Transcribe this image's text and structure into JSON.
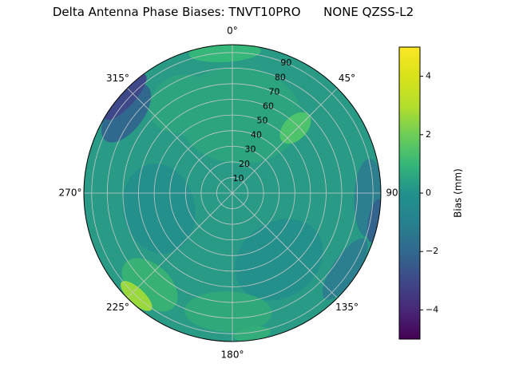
{
  "title": "Delta Antenna Phase Biases: TNVT10PRO      NONE QZSS-L2",
  "chart_data": {
    "type": "polar_contour",
    "title": "Delta Antenna Phase Biases: TNVT10PRO      NONE QZSS-L2",
    "antenna": "TNVT10PRO",
    "dome": "NONE",
    "signal": "QZSS-L2",
    "bias_units": "mm",
    "angular": {
      "ticks_deg": [
        0,
        45,
        90,
        135,
        180,
        225,
        270,
        315
      ],
      "labels": [
        "0°",
        "45°",
        "90°",
        "135°",
        "180°",
        "225°",
        "270°",
        "315°"
      ],
      "direction": "clockwise",
      "zero": "top"
    },
    "radial": {
      "ticks": [
        10,
        20,
        30,
        40,
        50,
        60,
        70,
        80,
        90
      ],
      "labels": [
        "10",
        "20",
        "30",
        "40",
        "50",
        "60",
        "70",
        "80",
        "90"
      ],
      "max": 95,
      "label_angle_deg": 22.5
    },
    "grid_color": "#c8c8c8",
    "outline_color": "#000000",
    "field": {
      "base_bias_mm": 0.5,
      "base_color": "#289a86",
      "regions": [
        {
          "name": "top-green-broad",
          "angle_deg": 5,
          "r": 50,
          "width_r": 80,
          "depth_r": 62,
          "bias_mm": 0.8,
          "color": "#2ba47f"
        },
        {
          "name": "upper-left-green",
          "angle_deg": 330,
          "r": 66,
          "width_r": 42,
          "depth_r": 36,
          "bias_mm": 0.8,
          "color": "#2ba47f"
        },
        {
          "name": "lower-right-dark-teal",
          "angle_deg": 145,
          "r": 52,
          "width_r": 60,
          "depth_r": 48,
          "bias_mm": -0.4,
          "color": "#23908b"
        },
        {
          "name": "left-dark-teal",
          "angle_deg": 258,
          "r": 48,
          "width_r": 58,
          "depth_r": 46,
          "bias_mm": -0.4,
          "color": "#23908b"
        },
        {
          "name": "bottom-green",
          "angle_deg": 182,
          "r": 76,
          "width_r": 56,
          "depth_r": 26,
          "bias_mm": 1.0,
          "color": "#2fa87a"
        },
        {
          "name": "right-edge-teal-blue-upper",
          "angle_deg": 92,
          "r": 87,
          "width_r": 50,
          "depth_r": 18,
          "bias_mm": -1.0,
          "color": "#2b7f8e"
        },
        {
          "name": "right-edge-teal-blue-lower",
          "angle_deg": 124,
          "r": 87,
          "width_r": 46,
          "depth_r": 16,
          "bias_mm": -1.0,
          "color": "#2b7f8e"
        },
        {
          "name": "right-edge-blue",
          "angle_deg": 101,
          "r": 93,
          "width_r": 28,
          "depth_r": 9,
          "bias_mm": -1.8,
          "color": "#33648e"
        },
        {
          "name": "nw-edge-blue",
          "angle_deg": 307,
          "r": 85,
          "width_r": 44,
          "depth_r": 22,
          "bias_mm": -1.8,
          "color": "#31688e"
        },
        {
          "name": "nw-edge-navy",
          "angle_deg": 312,
          "r": 92,
          "width_r": 38,
          "depth_r": 12,
          "bias_mm": -3.0,
          "color": "#3e4989"
        },
        {
          "name": "top-edge-green-arc",
          "angle_deg": 357,
          "r": 90,
          "width_r": 46,
          "depth_r": 12,
          "bias_mm": 1.8,
          "color": "#35b779"
        },
        {
          "name": "ne-green-blob",
          "angle_deg": 44,
          "r": 58,
          "width_r": 15,
          "depth_r": 24,
          "bias_mm": 2.2,
          "color": "#4dc36c"
        },
        {
          "name": "sw-green-patch",
          "angle_deg": 222,
          "r": 79,
          "width_r": 42,
          "depth_r": 26,
          "bias_mm": 1.8,
          "color": "#38b274"
        },
        {
          "name": "sw-edge-yellow-green",
          "angle_deg": 223,
          "r": 90,
          "width_r": 26,
          "depth_r": 10,
          "bias_mm": 3.3,
          "color": "#9ad93c"
        },
        {
          "name": "bottom-edge-green-arc",
          "angle_deg": 172,
          "r": 91,
          "width_r": 24,
          "depth_r": 9,
          "bias_mm": 1.5,
          "color": "#33ae7b"
        }
      ]
    },
    "colorbar": {
      "label": "Bias (mm)",
      "min": -5,
      "max": 5,
      "colormap": "viridis",
      "ticks": [
        {
          "value": 4,
          "label": "4"
        },
        {
          "value": 2,
          "label": "2"
        },
        {
          "value": 0,
          "label": "0"
        },
        {
          "value": -2,
          "label": "−2"
        },
        {
          "value": -4,
          "label": "−4"
        }
      ],
      "stops": [
        "#440154",
        "#482878",
        "#3e4989",
        "#31688e",
        "#26828e",
        "#21918c",
        "#35b779",
        "#6ece58",
        "#b5de2b",
        "#d8e219",
        "#fde725"
      ]
    }
  }
}
